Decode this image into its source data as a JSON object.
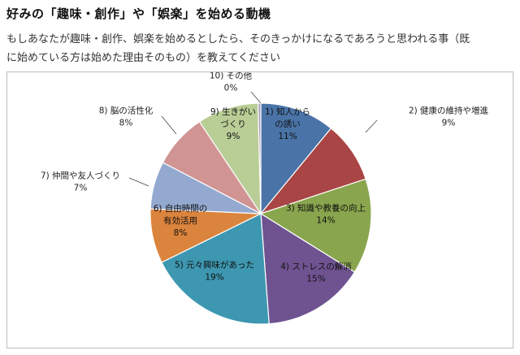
{
  "page": {
    "title": "好みの「趣味・創作」や「娯楽」を始める動機",
    "subtitle_line1": "もしあなたが趣味・創作、娯楽を始めるとしたら、そのきっかけになるであろうと思われる事（既",
    "subtitle_line2": "に始めている方は始めた理由そのもの）を教えてください"
  },
  "chart_data": {
    "type": "pie",
    "title": "",
    "slices": [
      {
        "label_lines": [
          "1) 知人から",
          "の誘い"
        ],
        "value": 11,
        "pct_text": "11%",
        "color": "#4a74a8"
      },
      {
        "label_lines": [
          "2) 健康の維持や増進"
        ],
        "value": 9,
        "pct_text": "9%",
        "color": "#a94544"
      },
      {
        "label_lines": [
          "3) 知識や教養の向上"
        ],
        "value": 14,
        "pct_text": "14%",
        "color": "#89a54e"
      },
      {
        "label_lines": [
          "4) ストレスの解消"
        ],
        "value": 15,
        "pct_text": "15%",
        "color": "#6f5391"
      },
      {
        "label_lines": [
          "5) 元々興味があった"
        ],
        "value": 19,
        "pct_text": "19%",
        "color": "#3d97b0"
      },
      {
        "label_lines": [
          "6) 自由時間の",
          "有効活用"
        ],
        "value": 8,
        "pct_text": "8%",
        "color": "#db843d"
      },
      {
        "label_lines": [
          "7) 仲間や友人づくり"
        ],
        "value": 7,
        "pct_text": "7%",
        "color": "#93a9d0"
      },
      {
        "label_lines": [
          "8) 脳の活性化"
        ],
        "value": 8,
        "pct_text": "8%",
        "color": "#d09493"
      },
      {
        "label_lines": [
          "9) 生きがい",
          "づくり"
        ],
        "value": 9,
        "pct_text": "9%",
        "color": "#b9cd96"
      },
      {
        "label_lines": [
          "10) その他"
        ],
        "value": 0.4,
        "pct_text": "0%",
        "color": "#a99bbd"
      }
    ]
  }
}
